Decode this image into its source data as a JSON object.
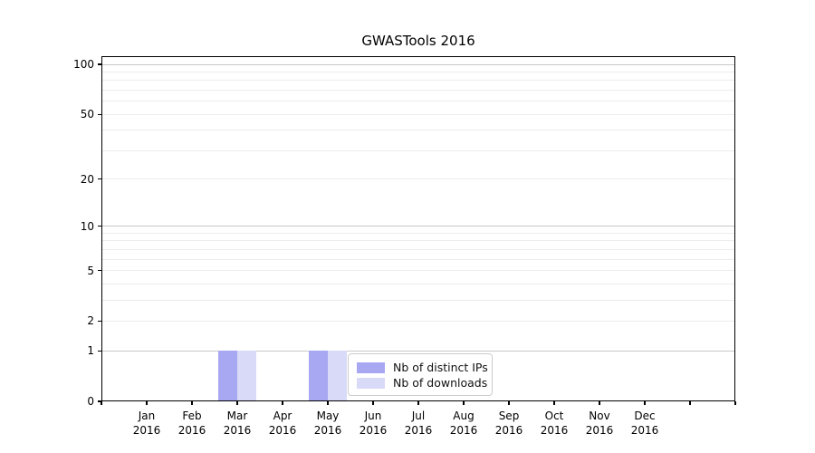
{
  "chart_data": {
    "type": "bar",
    "title": "GWASTools 2016",
    "year_label": "2016",
    "categories": [
      "Jan",
      "Feb",
      "Mar",
      "Apr",
      "May",
      "Jun",
      "Jul",
      "Aug",
      "Sep",
      "Oct",
      "Nov",
      "Dec"
    ],
    "series": [
      {
        "name": "Nb of distinct IPs",
        "color": "#a7a7f2",
        "values": [
          0,
          0,
          1,
          0,
          1,
          0,
          0,
          0,
          0,
          0,
          0,
          0
        ]
      },
      {
        "name": "Nb of downloads",
        "color": "#d9d9f8",
        "values": [
          0,
          0,
          1,
          0,
          1,
          0,
          0,
          0,
          0,
          0,
          0,
          0
        ]
      }
    ],
    "y_axis": {
      "scale": "log1p",
      "tick_values": [
        0,
        1,
        2,
        5,
        10,
        20,
        50,
        100
      ],
      "tick_labels": [
        "0",
        "1",
        "2",
        "5",
        "10",
        "20",
        "50",
        "100"
      ],
      "range_max": 112
    },
    "x_axis": {
      "tick_label_lines": [
        "month",
        "year"
      ]
    },
    "grid": {
      "major_values": [
        1,
        10,
        100
      ],
      "minor_values": [
        2,
        3,
        4,
        5,
        6,
        7,
        8,
        9,
        20,
        30,
        40,
        50,
        60,
        70,
        80,
        90
      ],
      "major_color": "#c8c8c8",
      "minor_color": "#ececec"
    },
    "legend": {
      "entries": [
        "Nb of distinct IPs",
        "Nb of downloads"
      ],
      "position": "lower right of plot"
    },
    "frame_color": "#000000",
    "background": "#ffffff"
  }
}
